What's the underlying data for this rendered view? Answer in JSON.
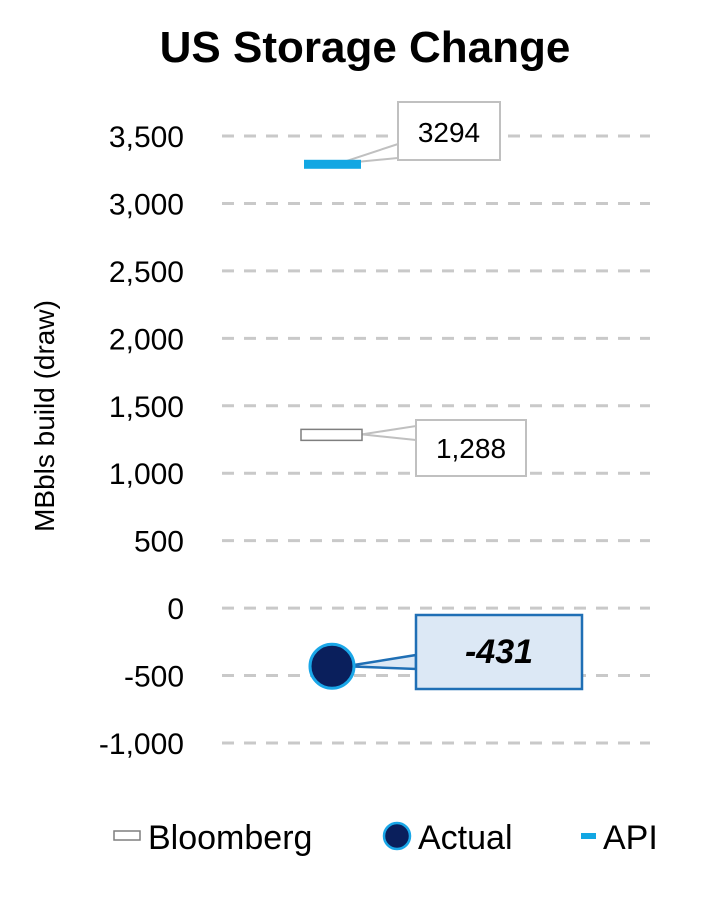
{
  "chart_data": {
    "type": "scatter",
    "title": "US Storage Change",
    "ylabel": "MBbls build (draw)",
    "ylim": [
      -1000,
      3500
    ],
    "yticks": [
      3500,
      3000,
      2500,
      2000,
      1500,
      1000,
      500,
      0,
      -500,
      -1000
    ],
    "ytick_labels": [
      "3,500",
      "3,000",
      "2,500",
      "2,000",
      "1,500",
      "1,000",
      "500",
      "0",
      "-500",
      "-1,000"
    ],
    "grid": true,
    "legend_position": "bottom",
    "series": [
      {
        "name": "Bloomberg",
        "value": 1288,
        "label": "1,288",
        "marker": "dash-outline",
        "color": "#ffffff",
        "stroke": "#7f7f7f"
      },
      {
        "name": "Actual",
        "value": -431,
        "label": "-431",
        "marker": "circle",
        "color": "#0a1f5c",
        "stroke": "#1aa7e8"
      },
      {
        "name": "API",
        "value": 3294,
        "label": "3294",
        "marker": "dash",
        "color": "#12a7e3"
      }
    ],
    "colors": {
      "grid": "#c9c9c9",
      "callout_border": "#c0c0c0",
      "actual_callout_fill": "#dce8f5",
      "actual_callout_border": "#1f6fb5"
    }
  }
}
